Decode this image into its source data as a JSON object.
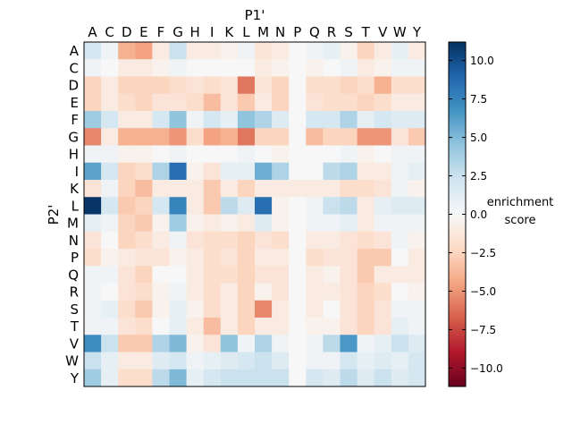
{
  "chart_data": {
    "type": "heatmap",
    "xlabel": "P1'",
    "ylabel": "P2'",
    "x_categories": [
      "A",
      "C",
      "D",
      "E",
      "F",
      "G",
      "H",
      "I",
      "K",
      "L",
      "M",
      "N",
      "P",
      "Q",
      "R",
      "S",
      "T",
      "V",
      "W",
      "Y"
    ],
    "y_categories": [
      "A",
      "C",
      "D",
      "E",
      "F",
      "G",
      "H",
      "I",
      "K",
      "L",
      "M",
      "N",
      "P",
      "Q",
      "R",
      "S",
      "T",
      "V",
      "W",
      "Y"
    ],
    "colorbar": {
      "label_line1": "enrichment",
      "label_line2": "score",
      "vmin": -11.2,
      "vmax": 11.2,
      "ticks": [
        10.0,
        7.5,
        5.0,
        2.5,
        0.0,
        -2.5,
        -5.0,
        -7.5,
        -10.0
      ],
      "tick_labels": [
        "10.0",
        "7.5",
        "5.0",
        "2.5",
        "0.0",
        "−2.5",
        "−5.0",
        "−7.5",
        "−10.0"
      ],
      "colormap": "RdBu (blue = positive, red = negative)"
    },
    "values": [
      [
        2.0,
        0.5,
        -4.0,
        -4.5,
        -1.0,
        2.5,
        -1.0,
        -1.0,
        -0.5,
        0.5,
        -1.5,
        -1.0,
        0.0,
        0.5,
        1.0,
        -0.5,
        -2.5,
        -1.0,
        1.0,
        -1.0
      ],
      [
        0.5,
        0.0,
        -1.0,
        -1.0,
        -0.5,
        0.5,
        0.0,
        0.0,
        0.0,
        0.0,
        -1.0,
        -0.5,
        0.0,
        -0.5,
        0.0,
        0.5,
        -1.0,
        -0.5,
        0.5,
        0.5
      ],
      [
        -2.5,
        -1.0,
        -2.5,
        -2.5,
        -2.5,
        -2.0,
        -1.5,
        -2.0,
        -1.5,
        -6.0,
        -1.5,
        -2.5,
        0.0,
        -2.0,
        -2.0,
        -2.5,
        -2.0,
        -4.0,
        -2.0,
        -2.0
      ],
      [
        -2.5,
        -1.0,
        -2.0,
        -2.5,
        -1.5,
        -1.5,
        -2.0,
        -3.5,
        -1.5,
        -3.0,
        -1.0,
        -2.5,
        0.0,
        -1.5,
        -2.0,
        -2.0,
        -2.5,
        -2.0,
        -1.0,
        -1.0
      ],
      [
        4.0,
        2.0,
        -1.0,
        -1.0,
        2.0,
        4.5,
        0.5,
        2.0,
        1.0,
        4.5,
        3.5,
        1.5,
        0.0,
        2.0,
        2.0,
        3.5,
        1.0,
        2.0,
        1.5,
        1.5
      ],
      [
        -5.5,
        -1.0,
        -4.0,
        -4.0,
        -4.0,
        -5.0,
        -2.0,
        -4.5,
        -4.0,
        -6.0,
        -2.5,
        -2.5,
        0.0,
        -3.5,
        -2.5,
        -2.5,
        -5.0,
        -5.0,
        -1.5,
        -3.0
      ],
      [
        0.5,
        0.5,
        -0.5,
        -0.5,
        0.0,
        0.5,
        0.0,
        0.0,
        0.0,
        0.5,
        0.0,
        -0.5,
        0.0,
        0.0,
        0.0,
        0.5,
        -0.5,
        0.0,
        0.5,
        0.5
      ],
      [
        6.0,
        2.0,
        -2.5,
        -2.0,
        3.5,
        8.5,
        -0.5,
        -1.5,
        1.0,
        1.0,
        5.5,
        3.5,
        0.0,
        0.0,
        3.0,
        3.5,
        -1.0,
        -1.0,
        0.5,
        1.0
      ],
      [
        -1.5,
        0.5,
        -2.5,
        -3.5,
        -1.0,
        -1.0,
        -1.0,
        -3.0,
        -1.0,
        -2.5,
        -1.0,
        -1.0,
        -1.0,
        -1.0,
        -1.0,
        -2.0,
        -2.0,
        -1.5,
        0.5,
        -0.5
      ],
      [
        11.0,
        2.0,
        -3.0,
        -2.5,
        2.0,
        7.5,
        -1.0,
        -3.0,
        3.0,
        1.5,
        8.5,
        -0.5,
        0.0,
        0.5,
        2.5,
        3.0,
        -1.0,
        1.0,
        1.5,
        1.5
      ],
      [
        1.0,
        0.5,
        -2.5,
        -3.0,
        -0.5,
        4.0,
        -0.5,
        -1.0,
        -0.5,
        -1.0,
        1.5,
        -0.5,
        0.0,
        0.5,
        0.5,
        1.0,
        -1.0,
        0.5,
        0.5,
        0.5
      ],
      [
        -1.5,
        0.0,
        -2.5,
        -2.0,
        -1.0,
        0.5,
        -1.5,
        -2.0,
        -2.0,
        -2.5,
        -1.5,
        -2.0,
        0.0,
        -1.0,
        -1.0,
        -1.5,
        -2.0,
        -1.5,
        0.5,
        -0.5
      ],
      [
        -2.0,
        -0.5,
        -1.0,
        -1.5,
        -1.5,
        -0.5,
        -1.0,
        -2.0,
        -1.5,
        -2.5,
        -1.0,
        -1.0,
        0.0,
        -2.0,
        -1.5,
        -1.5,
        -3.0,
        -3.0,
        0.0,
        -1.0
      ],
      [
        0.5,
        0.5,
        -1.5,
        -2.5,
        0.0,
        0.0,
        -1.0,
        -2.0,
        -2.0,
        -2.5,
        -1.5,
        -1.5,
        0.0,
        -1.0,
        -0.5,
        -1.5,
        -3.0,
        -1.0,
        -1.0,
        -1.0
      ],
      [
        0.5,
        0.0,
        -1.5,
        -2.0,
        -0.5,
        0.5,
        -1.0,
        -2.0,
        -1.0,
        -2.5,
        -0.5,
        -1.5,
        0.0,
        -1.0,
        -1.0,
        -1.5,
        -2.5,
        -2.0,
        0.0,
        -0.5
      ],
      [
        0.5,
        1.0,
        -2.0,
        -3.0,
        -0.5,
        1.0,
        -0.5,
        -2.0,
        -1.0,
        -2.5,
        -5.5,
        -1.0,
        0.0,
        -1.0,
        0.0,
        -1.5,
        -2.5,
        -1.5,
        0.5,
        0.5
      ],
      [
        0.5,
        0.5,
        -1.5,
        -2.0,
        0.0,
        1.0,
        -1.0,
        -3.5,
        -1.0,
        -2.5,
        -1.0,
        -1.0,
        0.0,
        -0.5,
        -0.5,
        -1.5,
        -2.5,
        -1.5,
        1.0,
        0.5
      ],
      [
        7.0,
        2.5,
        -3.0,
        -3.0,
        3.5,
        5.0,
        -0.5,
        -1.5,
        4.5,
        0.5,
        3.5,
        0.5,
        0.0,
        0.5,
        3.0,
        6.5,
        0.5,
        1.0,
        2.5,
        1.5
      ],
      [
        2.5,
        1.0,
        -1.0,
        -1.0,
        1.5,
        2.0,
        0.5,
        1.0,
        1.5,
        2.0,
        2.5,
        1.5,
        0.0,
        0.5,
        0.5,
        2.0,
        1.0,
        1.5,
        1.0,
        2.0
      ],
      [
        4.0,
        1.0,
        -2.0,
        -2.0,
        3.0,
        5.0,
        1.0,
        2.0,
        2.5,
        2.5,
        2.5,
        2.5,
        0.0,
        2.0,
        1.5,
        3.0,
        1.5,
        2.5,
        1.5,
        2.0
      ]
    ]
  }
}
